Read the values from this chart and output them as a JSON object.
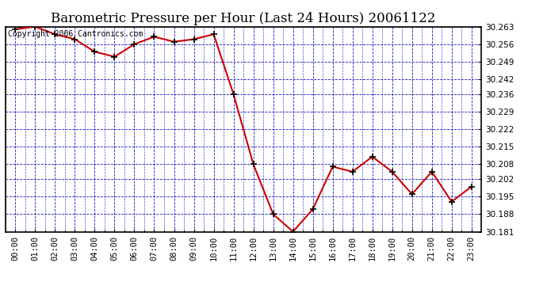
{
  "title": "Barometric Pressure per Hour (Last 24 Hours) 20061122",
  "copyright": "Copyright 2006 Cantronics.com",
  "x_labels": [
    "00:00",
    "01:00",
    "02:00",
    "03:00",
    "04:00",
    "05:00",
    "06:00",
    "07:00",
    "08:00",
    "09:00",
    "10:00",
    "11:00",
    "12:00",
    "13:00",
    "14:00",
    "15:00",
    "16:00",
    "17:00",
    "18:00",
    "19:00",
    "20:00",
    "21:00",
    "22:00",
    "23:00"
  ],
  "y_values": [
    30.262,
    30.263,
    30.26,
    30.258,
    30.253,
    30.251,
    30.256,
    30.259,
    30.257,
    30.258,
    30.26,
    30.236,
    30.208,
    30.188,
    30.181,
    30.19,
    30.207,
    30.205,
    30.211,
    30.205,
    30.196,
    30.205,
    30.193,
    30.199
  ],
  "ylim_min": 30.181,
  "ylim_max": 30.263,
  "y_ticks": [
    30.181,
    30.188,
    30.195,
    30.202,
    30.208,
    30.215,
    30.222,
    30.229,
    30.236,
    30.242,
    30.249,
    30.256,
    30.263
  ],
  "line_color": "#cc0000",
  "marker_color": "#000000",
  "bg_color": "#ffffff",
  "plot_bg_color": "#ffffff",
  "grid_color": "#0000bb",
  "title_fontsize": 12,
  "copyright_fontsize": 7,
  "tick_fontsize": 7.5,
  "axis_label_color": "#000000",
  "border_color": "#000000"
}
